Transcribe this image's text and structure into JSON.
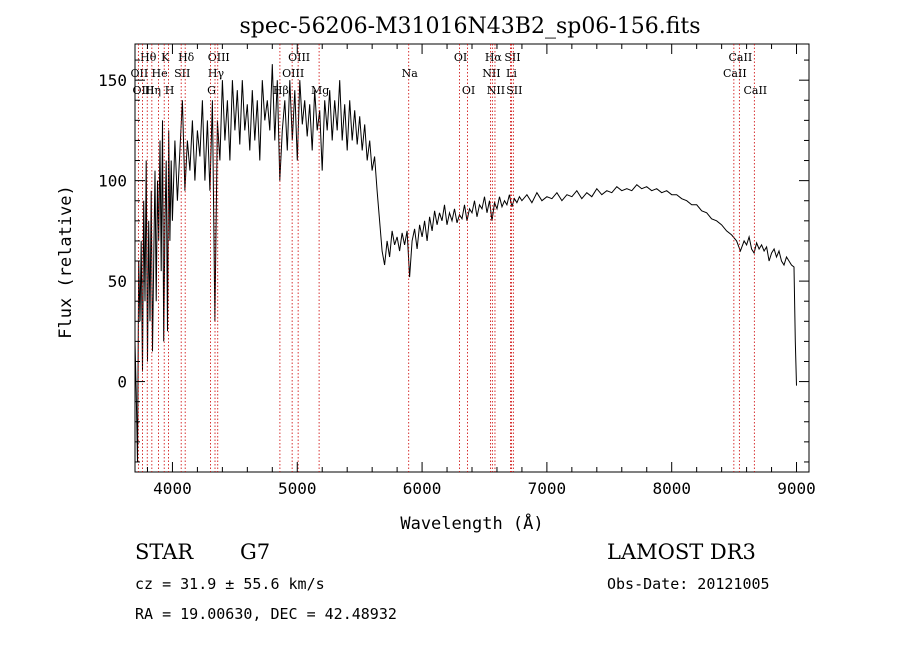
{
  "chart_data": {
    "type": "line",
    "title": "spec-56206-M31016N43B2_sp06-156.fits",
    "xlabel": "Wavelength (Å)",
    "ylabel": "Flux (relative)",
    "xlim": [
      3700,
      9100
    ],
    "ylim": [
      -45,
      168
    ],
    "x_ticks": [
      4000,
      5000,
      6000,
      7000,
      8000,
      9000
    ],
    "y_ticks": [
      0,
      50,
      100,
      150
    ],
    "grid": false,
    "line_color": "#000000",
    "marker_color": "#cc0000",
    "series": [
      {
        "name": "flux",
        "points": [
          [
            3700,
            20
          ],
          [
            3710,
            -5
          ],
          [
            3720,
            -40
          ],
          [
            3730,
            60
          ],
          [
            3740,
            30
          ],
          [
            3750,
            70
          ],
          [
            3760,
            5
          ],
          [
            3770,
            90
          ],
          [
            3780,
            40
          ],
          [
            3790,
            110
          ],
          [
            3800,
            10
          ],
          [
            3810,
            80
          ],
          [
            3820,
            30
          ],
          [
            3830,
            95
          ],
          [
            3840,
            15
          ],
          [
            3850,
            60
          ],
          [
            3860,
            105
          ],
          [
            3870,
            40
          ],
          [
            3880,
            100
          ],
          [
            3890,
            70
          ],
          [
            3900,
            120
          ],
          [
            3910,
            55
          ],
          [
            3920,
            130
          ],
          [
            3930,
            20
          ],
          [
            3940,
            80
          ],
          [
            3950,
            110
          ],
          [
            3960,
            25
          ],
          [
            3970,
            125
          ],
          [
            3980,
            70
          ],
          [
            3990,
            110
          ],
          [
            4000,
            80
          ],
          [
            4020,
            120
          ],
          [
            4040,
            90
          ],
          [
            4060,
            115
          ],
          [
            4080,
            140
          ],
          [
            4100,
            95
          ],
          [
            4120,
            120
          ],
          [
            4140,
            105
          ],
          [
            4160,
            130
          ],
          [
            4180,
            100
          ],
          [
            4200,
            125
          ],
          [
            4220,
            112
          ],
          [
            4240,
            140
          ],
          [
            4260,
            100
          ],
          [
            4280,
            130
          ],
          [
            4300,
            95
          ],
          [
            4320,
            140
          ],
          [
            4340,
            30
          ],
          [
            4360,
            130
          ],
          [
            4380,
            110
          ],
          [
            4400,
            150
          ],
          [
            4420,
            120
          ],
          [
            4440,
            140
          ],
          [
            4460,
            110
          ],
          [
            4480,
            150
          ],
          [
            4500,
            125
          ],
          [
            4520,
            145
          ],
          [
            4540,
            118
          ],
          [
            4560,
            150
          ],
          [
            4580,
            125
          ],
          [
            4600,
            138
          ],
          [
            4620,
            115
          ],
          [
            4640,
            145
          ],
          [
            4660,
            120
          ],
          [
            4680,
            140
          ],
          [
            4700,
            110
          ],
          [
            4720,
            150
          ],
          [
            4740,
            130
          ],
          [
            4760,
            140
          ],
          [
            4780,
            125
          ],
          [
            4800,
            158
          ],
          [
            4820,
            120
          ],
          [
            4840,
            150
          ],
          [
            4860,
            100
          ],
          [
            4880,
            125
          ],
          [
            4900,
            140
          ],
          [
            4920,
            115
          ],
          [
            4940,
            150
          ],
          [
            4960,
            120
          ],
          [
            4980,
            145
          ],
          [
            5000,
            110
          ],
          [
            5020,
            150
          ],
          [
            5040,
            128
          ],
          [
            5060,
            140
          ],
          [
            5080,
            122
          ],
          [
            5100,
            138
          ],
          [
            5120,
            115
          ],
          [
            5140,
            145
          ],
          [
            5160,
            125
          ],
          [
            5180,
            135
          ],
          [
            5200,
            105
          ],
          [
            5220,
            140
          ],
          [
            5240,
            125
          ],
          [
            5260,
            145
          ],
          [
            5280,
            120
          ],
          [
            5300,
            140
          ],
          [
            5320,
            125
          ],
          [
            5340,
            150
          ],
          [
            5360,
            120
          ],
          [
            5380,
            138
          ],
          [
            5400,
            115
          ],
          [
            5420,
            140
          ],
          [
            5440,
            120
          ],
          [
            5460,
            135
          ],
          [
            5480,
            118
          ],
          [
            5500,
            132
          ],
          [
            5520,
            115
          ],
          [
            5540,
            128
          ],
          [
            5560,
            110
          ],
          [
            5580,
            120
          ],
          [
            5600,
            105
          ],
          [
            5620,
            112
          ],
          [
            5640,
            95
          ],
          [
            5660,
            80
          ],
          [
            5680,
            65
          ],
          [
            5700,
            58
          ],
          [
            5720,
            70
          ],
          [
            5740,
            62
          ],
          [
            5760,
            75
          ],
          [
            5780,
            68
          ],
          [
            5800,
            72
          ],
          [
            5820,
            65
          ],
          [
            5840,
            74
          ],
          [
            5860,
            68
          ],
          [
            5880,
            75
          ],
          [
            5900,
            52
          ],
          [
            5920,
            70
          ],
          [
            5940,
            76
          ],
          [
            5960,
            66
          ],
          [
            5980,
            78
          ],
          [
            6000,
            72
          ],
          [
            6020,
            80
          ],
          [
            6040,
            70
          ],
          [
            6060,
            82
          ],
          [
            6080,
            75
          ],
          [
            6100,
            85
          ],
          [
            6120,
            78
          ],
          [
            6140,
            84
          ],
          [
            6160,
            80
          ],
          [
            6180,
            88
          ],
          [
            6200,
            78
          ],
          [
            6220,
            84
          ],
          [
            6240,
            80
          ],
          [
            6260,
            86
          ],
          [
            6280,
            79
          ],
          [
            6300,
            83
          ],
          [
            6320,
            81
          ],
          [
            6340,
            88
          ],
          [
            6360,
            80
          ],
          [
            6380,
            86
          ],
          [
            6400,
            84
          ],
          [
            6420,
            90
          ],
          [
            6440,
            82
          ],
          [
            6460,
            88
          ],
          [
            6480,
            86
          ],
          [
            6500,
            92
          ],
          [
            6520,
            84
          ],
          [
            6540,
            90
          ],
          [
            6560,
            80
          ],
          [
            6580,
            89
          ],
          [
            6600,
            86
          ],
          [
            6620,
            92
          ],
          [
            6640,
            87
          ],
          [
            6660,
            90
          ],
          [
            6680,
            88
          ],
          [
            6700,
            93
          ],
          [
            6720,
            87
          ],
          [
            6740,
            91
          ],
          [
            6760,
            89
          ],
          [
            6780,
            92
          ],
          [
            6800,
            90
          ],
          [
            6840,
            93
          ],
          [
            6880,
            89
          ],
          [
            6920,
            94
          ],
          [
            6960,
            90
          ],
          [
            7000,
            92
          ],
          [
            7040,
            91
          ],
          [
            7080,
            94
          ],
          [
            7120,
            90
          ],
          [
            7160,
            93
          ],
          [
            7200,
            92
          ],
          [
            7240,
            95
          ],
          [
            7280,
            91
          ],
          [
            7320,
            94
          ],
          [
            7360,
            92
          ],
          [
            7400,
            96
          ],
          [
            7440,
            93
          ],
          [
            7480,
            95
          ],
          [
            7520,
            94
          ],
          [
            7560,
            97
          ],
          [
            7600,
            95
          ],
          [
            7640,
            96
          ],
          [
            7680,
            95
          ],
          [
            7720,
            98
          ],
          [
            7760,
            96
          ],
          [
            7800,
            97
          ],
          [
            7840,
            95
          ],
          [
            7880,
            96
          ],
          [
            7920,
            94
          ],
          [
            7960,
            95
          ],
          [
            8000,
            93
          ],
          [
            8040,
            93
          ],
          [
            8080,
            91
          ],
          [
            8120,
            90
          ],
          [
            8160,
            88
          ],
          [
            8200,
            88
          ],
          [
            8240,
            85
          ],
          [
            8280,
            84
          ],
          [
            8320,
            81
          ],
          [
            8360,
            80
          ],
          [
            8400,
            78
          ],
          [
            8440,
            75
          ],
          [
            8480,
            73
          ],
          [
            8520,
            70
          ],
          [
            8550,
            65
          ],
          [
            8580,
            70
          ],
          [
            8600,
            68
          ],
          [
            8620,
            72
          ],
          [
            8640,
            66
          ],
          [
            8660,
            64
          ],
          [
            8680,
            69
          ],
          [
            8700,
            66
          ],
          [
            8720,
            68
          ],
          [
            8740,
            65
          ],
          [
            8760,
            67
          ],
          [
            8780,
            60
          ],
          [
            8800,
            64
          ],
          [
            8820,
            66
          ],
          [
            8840,
            62
          ],
          [
            8860,
            65
          ],
          [
            8880,
            60
          ],
          [
            8900,
            58
          ],
          [
            8920,
            62
          ],
          [
            8940,
            60
          ],
          [
            8960,
            58
          ],
          [
            8980,
            57
          ],
          [
            8990,
            20
          ],
          [
            9000,
            -2
          ]
        ]
      }
    ],
    "spectral_lines": [
      {
        "label": "Hθ",
        "x": 3798,
        "row": 1
      },
      {
        "label": "OII",
        "x": 3727,
        "row": 2
      },
      {
        "label": "OIII",
        "x": 3760,
        "row": 3
      },
      {
        "label": "He",
        "x": 3889,
        "row": 2
      },
      {
        "label": "K",
        "x": 3934,
        "row": 1
      },
      {
        "label": "Hη",
        "x": 3835,
        "row": 3
      },
      {
        "label": "H",
        "x": 3969,
        "row": 3
      },
      {
        "label": "SII",
        "x": 4070,
        "row": 2
      },
      {
        "label": "Hδ",
        "x": 4102,
        "row": 1
      },
      {
        "label": "OIII",
        "x": 4363,
        "row": 1
      },
      {
        "label": "Hγ",
        "x": 4341,
        "row": 2
      },
      {
        "label": "G",
        "x": 4305,
        "row": 3
      },
      {
        "label": "Hβ",
        "x": 4861,
        "row": 3
      },
      {
        "label": "OIII",
        "x": 5007,
        "row": 1
      },
      {
        "label": "OIII",
        "x": 4959,
        "row": 2
      },
      {
        "label": "Mg",
        "x": 5175,
        "row": 3
      },
      {
        "label": "Na",
        "x": 5893,
        "row": 2
      },
      {
        "label": "OI",
        "x": 6300,
        "row": 1
      },
      {
        "label": "OI",
        "x": 6364,
        "row": 3
      },
      {
        "label": "Hα",
        "x": 6563,
        "row": 1
      },
      {
        "label": "NII",
        "x": 6548,
        "row": 2
      },
      {
        "label": "NII",
        "x": 6584,
        "row": 3
      },
      {
        "label": "SII",
        "x": 6716,
        "row": 1
      },
      {
        "label": "Li",
        "x": 6708,
        "row": 2
      },
      {
        "label": "SII",
        "x": 6731,
        "row": 3
      },
      {
        "label": "CaII",
        "x": 8542,
        "row": 1
      },
      {
        "label": "CaII",
        "x": 8498,
        "row": 2
      },
      {
        "label": "CaII",
        "x": 8662,
        "row": 3
      }
    ]
  },
  "info": {
    "object_class": "STAR",
    "subclass": "G7",
    "survey": "LAMOST DR3",
    "cz": "cz = 31.9 ± 55.6 km/s",
    "obs_date": "Obs-Date: 20121005",
    "coords": "RA =  19.00630, DEC =  42.48932"
  }
}
